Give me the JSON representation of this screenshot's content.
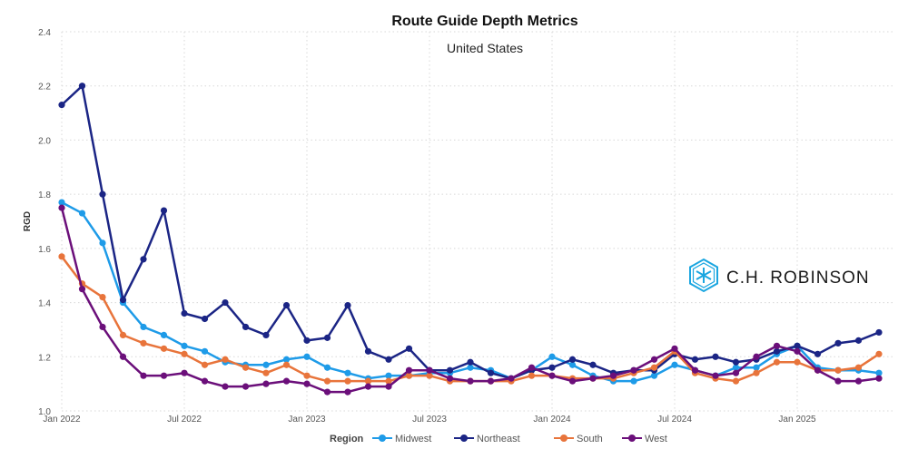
{
  "chart_data": {
    "type": "line",
    "title": "Route Guide Depth Metrics",
    "subtitle": "United States",
    "xlabel": "",
    "ylabel": "RGD",
    "ylim": [
      1.0,
      2.4
    ],
    "yticks": [
      "1.0",
      "1.2",
      "1.4",
      "1.6",
      "1.8",
      "2.0",
      "2.2",
      "2.4"
    ],
    "grid": true,
    "x_start": "Jan 2022",
    "x_count": 41,
    "xticks": [
      {
        "index": 0,
        "label": "Jan 2022"
      },
      {
        "index": 6,
        "label": "Jul 2022"
      },
      {
        "index": 12,
        "label": "Jan 2023"
      },
      {
        "index": 18,
        "label": "Jul 2023"
      },
      {
        "index": 24,
        "label": "Jan 2024"
      },
      {
        "index": 30,
        "label": "Jul 2024"
      },
      {
        "index": 36,
        "label": "Jan 2025"
      }
    ],
    "legend": {
      "title": "Region",
      "placement": "bottom-center"
    },
    "series": [
      {
        "name": "Midwest",
        "color": "#1e9be8",
        "values": [
          1.77,
          1.73,
          1.62,
          1.4,
          1.31,
          1.28,
          1.24,
          1.22,
          1.18,
          1.17,
          1.17,
          1.19,
          1.2,
          1.16,
          1.14,
          1.12,
          1.13,
          1.13,
          1.14,
          1.14,
          1.16,
          1.15,
          1.12,
          1.15,
          1.2,
          1.17,
          1.13,
          1.11,
          1.11,
          1.13,
          1.17,
          1.15,
          1.13,
          1.16,
          1.16,
          1.21,
          1.24,
          1.16,
          1.15,
          1.15,
          1.14
        ]
      },
      {
        "name": "Northeast",
        "color": "#1b2585",
        "values": [
          2.13,
          2.2,
          1.8,
          1.41,
          1.56,
          1.74,
          1.36,
          1.34,
          1.4,
          1.31,
          1.28,
          1.39,
          1.26,
          1.27,
          1.39,
          1.22,
          1.19,
          1.23,
          1.15,
          1.15,
          1.18,
          1.14,
          1.12,
          1.15,
          1.16,
          1.19,
          1.17,
          1.14,
          1.15,
          1.15,
          1.21,
          1.19,
          1.2,
          1.18,
          1.19,
          1.22,
          1.24,
          1.21,
          1.25,
          1.26,
          1.29
        ]
      },
      {
        "name": "South",
        "color": "#e8743b",
        "values": [
          1.57,
          1.47,
          1.42,
          1.28,
          1.25,
          1.23,
          1.21,
          1.17,
          1.19,
          1.16,
          1.14,
          1.17,
          1.13,
          1.11,
          1.11,
          1.11,
          1.11,
          1.13,
          1.13,
          1.11,
          1.11,
          1.11,
          1.11,
          1.13,
          1.13,
          1.12,
          1.12,
          1.12,
          1.14,
          1.16,
          1.22,
          1.14,
          1.12,
          1.11,
          1.14,
          1.18,
          1.18,
          1.15,
          1.15,
          1.16,
          1.21
        ]
      },
      {
        "name": "West",
        "color": "#6b0f7a",
        "values": [
          1.75,
          1.45,
          1.31,
          1.2,
          1.13,
          1.13,
          1.14,
          1.11,
          1.09,
          1.09,
          1.1,
          1.11,
          1.1,
          1.07,
          1.07,
          1.09,
          1.09,
          1.15,
          1.15,
          1.12,
          1.11,
          1.11,
          1.12,
          1.16,
          1.13,
          1.11,
          1.12,
          1.13,
          1.15,
          1.19,
          1.23,
          1.15,
          1.13,
          1.14,
          1.2,
          1.24,
          1.22,
          1.15,
          1.11,
          1.11,
          1.12
        ]
      }
    ]
  },
  "logo": {
    "text": "C.H. ROBINSON",
    "color": "#1ba6e0"
  }
}
